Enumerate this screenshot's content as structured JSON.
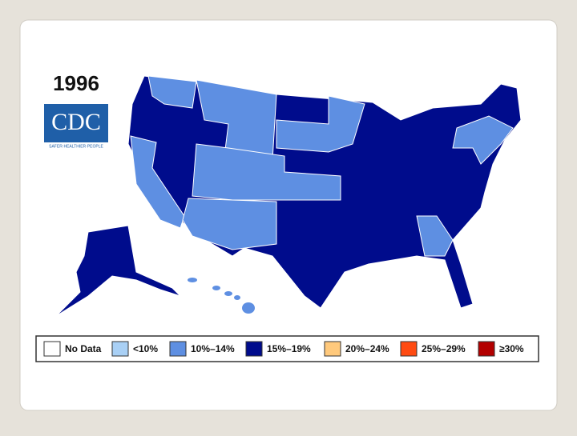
{
  "header": {
    "year": "1996",
    "logo": "CDC",
    "tagline": "SAFER·HEALTHIER·PEOPLE"
  },
  "legend": [
    {
      "label": "No Data",
      "color": "#ffffff"
    },
    {
      "label": "<10%",
      "color": "#a9d0f5"
    },
    {
      "label": "10%–14%",
      "color": "#5e8fe2"
    },
    {
      "label": "15%–19%",
      "color": "#000c8c"
    },
    {
      "label": "20%–24%",
      "color": "#ffc97c"
    },
    {
      "label": "25%–29%",
      "color": "#ff4b12"
    },
    {
      "label": "≥30%",
      "color": "#b30000"
    }
  ]
}
